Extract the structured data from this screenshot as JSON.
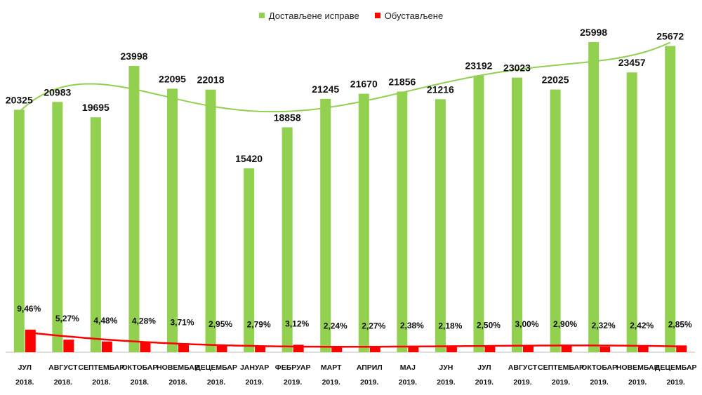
{
  "chart_data": {
    "type": "bar",
    "categories": [
      [
        "ЈУЛ",
        "2018."
      ],
      [
        "АВГУСТ",
        "2018."
      ],
      [
        "СЕПТЕМБАР",
        "2018."
      ],
      [
        "ОКТОБАР",
        "2018."
      ],
      [
        "НОВЕМБАР",
        "2018."
      ],
      [
        "ДЕЦЕМБАР",
        "2018."
      ],
      [
        "ЈАНУАР",
        "2019."
      ],
      [
        "ФЕБРУАР",
        "2019."
      ],
      [
        "МАРТ",
        "2019."
      ],
      [
        "АПРИЛ",
        "2019."
      ],
      [
        "МАЈ",
        "2019."
      ],
      [
        "ЈУН",
        "2019."
      ],
      [
        "ЈУЛ",
        "2019."
      ],
      [
        "АВГУСТ",
        "2019."
      ],
      [
        "СЕПТЕМБАР",
        "2019."
      ],
      [
        "ОКТОБАР",
        "2019."
      ],
      [
        "НОВЕМБАР",
        "2019."
      ],
      [
        "ДЕЦЕМБАР",
        "2019."
      ]
    ],
    "series": [
      {
        "name": "Достављене исправе",
        "color": "#92d050",
        "values": [
          20325,
          20983,
          19695,
          23998,
          22095,
          22018,
          15420,
          18858,
          21245,
          21670,
          21856,
          21216,
          23192,
          23023,
          22025,
          25998,
          23457,
          25672
        ]
      },
      {
        "name": "Обустављене",
        "color": "#ff0000",
        "values": [
          9.46,
          5.27,
          4.48,
          4.28,
          3.71,
          2.95,
          2.79,
          3.12,
          2.24,
          2.27,
          2.38,
          2.18,
          2.5,
          3.0,
          2.9,
          2.32,
          2.42,
          2.85
        ],
        "labels": [
          "9,46%",
          "5,27%",
          "4,48%",
          "4,28%",
          "3,71%",
          "2,95%",
          "2,79%",
          "3,12%",
          "2,24%",
          "2,27%",
          "2,38%",
          "2,18%",
          "2,50%",
          "3,00%",
          "2,90%",
          "2,32%",
          "2,42%",
          "2,85%"
        ]
      }
    ],
    "trendlines": [
      {
        "series": "Достављене исправе",
        "color": "#92d050"
      },
      {
        "series": "Обустављене",
        "color": "#ff0000"
      }
    ],
    "ylim_primary": [
      0,
      26000
    ],
    "legend_position": "top-center",
    "grid": false
  }
}
